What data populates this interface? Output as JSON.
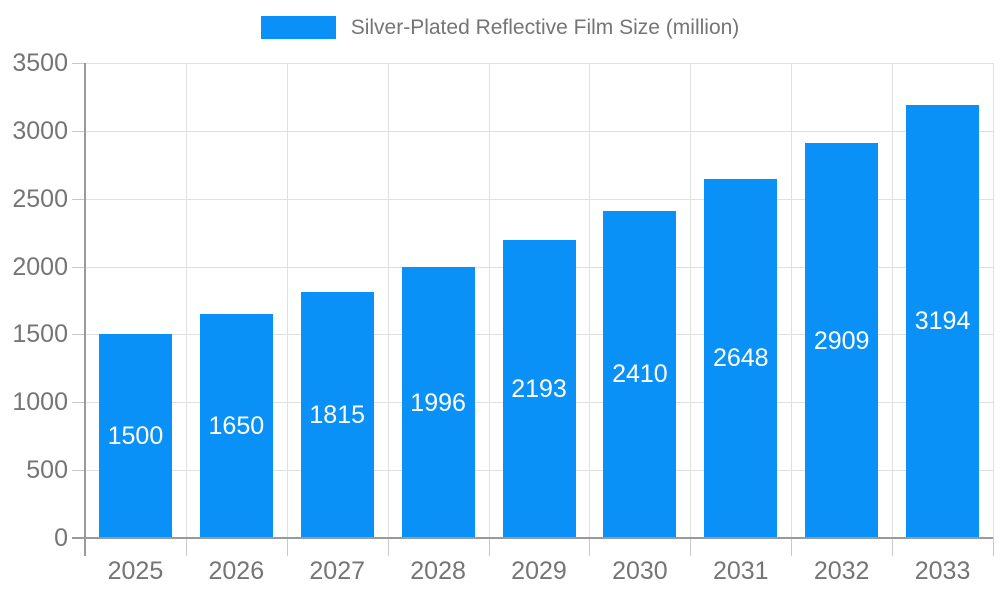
{
  "chart_data": {
    "type": "bar",
    "title": "Silver-Plated Reflective Film Size (million)",
    "categories": [
      "2025",
      "2026",
      "2027",
      "2028",
      "2029",
      "2030",
      "2031",
      "2032",
      "2033"
    ],
    "values": [
      1500,
      1650,
      1815,
      1996,
      2193,
      2410,
      2648,
      2909,
      3194
    ],
    "xlabel": "",
    "ylabel": "",
    "ylim": [
      0,
      3500
    ],
    "yticks": [
      0,
      500,
      1000,
      1500,
      2000,
      2500,
      3000,
      3500
    ],
    "grid": true,
    "legend_position": "top-center",
    "value_labels": "inside-center",
    "colors": {
      "bar": "#0a91f8",
      "value_label": "#ffffff",
      "axis_text": "#757575",
      "legend_text": "#757575",
      "grid_line": "#e0e0e0",
      "tick_line": "#c9c9c9",
      "axis_line": "#9a9a9a",
      "background": "#ffffff"
    }
  }
}
